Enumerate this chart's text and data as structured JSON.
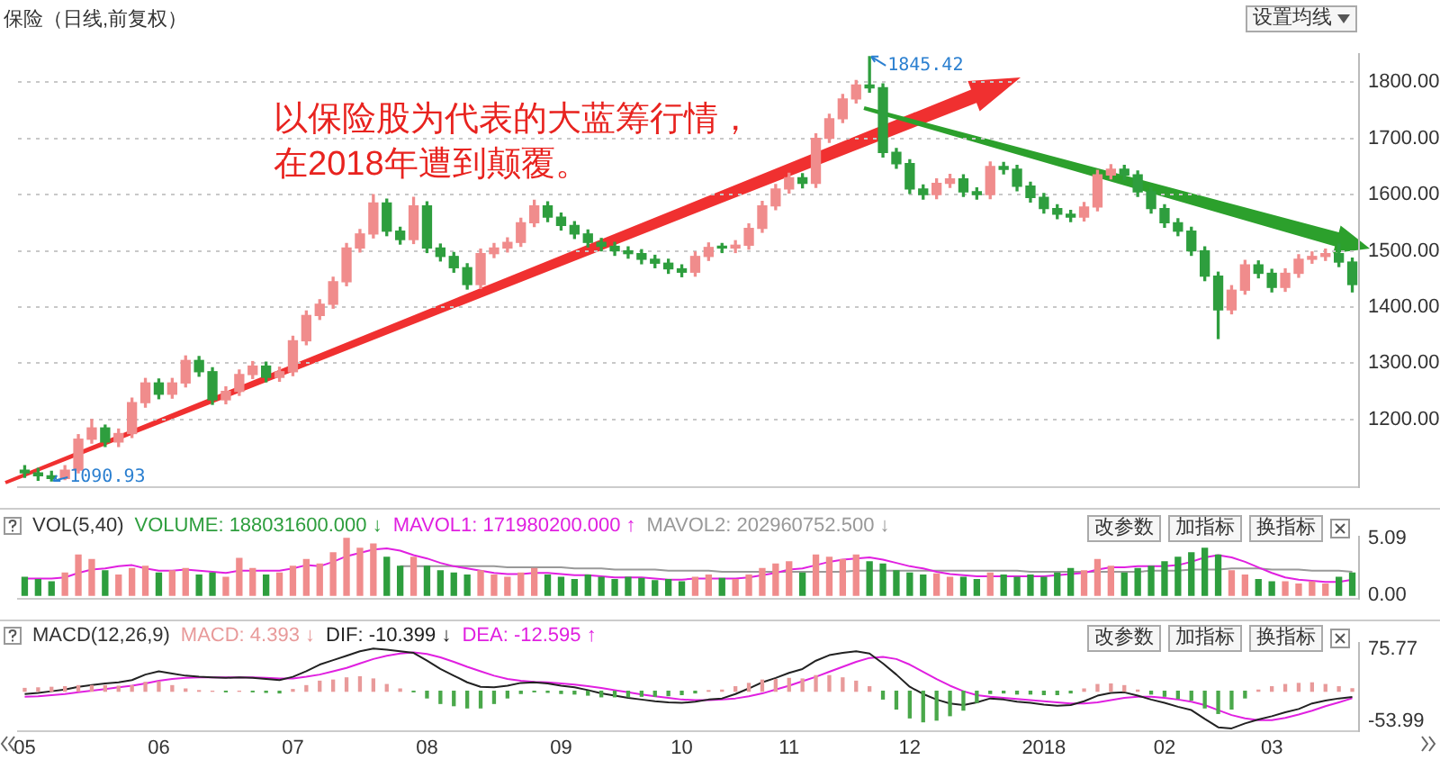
{
  "chart_data": [
    {
      "type": "candlestick",
      "title": "保险（日线,前复权）",
      "categories": [
        "05",
        null,
        null,
        null,
        null,
        null,
        null,
        null,
        null,
        null,
        "06",
        null,
        null,
        null,
        null,
        null,
        null,
        null,
        null,
        null,
        "07",
        null,
        null,
        null,
        null,
        null,
        null,
        null,
        null,
        null,
        "08",
        null,
        null,
        null,
        null,
        null,
        null,
        null,
        null,
        null,
        "09",
        null,
        null,
        null,
        null,
        null,
        null,
        null,
        null,
        "10",
        null,
        null,
        null,
        null,
        null,
        null,
        null,
        "11",
        null,
        null,
        null,
        null,
        null,
        null,
        null,
        null,
        "12",
        null,
        null,
        null,
        null,
        null,
        null,
        null,
        null,
        null,
        "2018",
        null,
        null,
        null,
        null,
        null,
        null,
        null,
        null,
        "02",
        null,
        null,
        null,
        null,
        null,
        null,
        null,
        "03",
        null,
        null,
        null,
        null,
        null,
        null
      ],
      "ohlc": [
        [
          1110,
          1118,
          1097,
          1105
        ],
        [
          1105,
          1113,
          1092,
          1100
        ],
        [
          1100,
          1108,
          1090.93,
          1095
        ],
        [
          1095,
          1118,
          1093,
          1110
        ],
        [
          1110,
          1173,
          1105,
          1165
        ],
        [
          1165,
          1200,
          1158,
          1185
        ],
        [
          1185,
          1190,
          1152,
          1160
        ],
        [
          1160,
          1183,
          1152,
          1175
        ],
        [
          1175,
          1238,
          1168,
          1230
        ],
        [
          1230,
          1273,
          1222,
          1265
        ],
        [
          1265,
          1272,
          1237,
          1245
        ],
        [
          1245,
          1273,
          1238,
          1265
        ],
        [
          1265,
          1313,
          1258,
          1305
        ],
        [
          1305,
          1312,
          1277,
          1285
        ],
        [
          1285,
          1292,
          1227,
          1235
        ],
        [
          1235,
          1258,
          1228,
          1250
        ],
        [
          1250,
          1288,
          1243,
          1280
        ],
        [
          1280,
          1303,
          1273,
          1295
        ],
        [
          1295,
          1302,
          1267,
          1275
        ],
        [
          1275,
          1293,
          1268,
          1285
        ],
        [
          1285,
          1348,
          1278,
          1340
        ],
        [
          1340,
          1393,
          1333,
          1385
        ],
        [
          1385,
          1413,
          1378,
          1405
        ],
        [
          1405,
          1453,
          1398,
          1445
        ],
        [
          1445,
          1513,
          1438,
          1505
        ],
        [
          1505,
          1538,
          1498,
          1530
        ],
        [
          1530,
          1600,
          1523,
          1585
        ],
        [
          1585,
          1592,
          1527,
          1535
        ],
        [
          1535,
          1542,
          1512,
          1520
        ],
        [
          1520,
          1595,
          1513,
          1580
        ],
        [
          1580,
          1587,
          1497,
          1505
        ],
        [
          1505,
          1512,
          1482,
          1490
        ],
        [
          1490,
          1497,
          1462,
          1470
        ],
        [
          1470,
          1477,
          1432,
          1440
        ],
        [
          1440,
          1503,
          1433,
          1495
        ],
        [
          1495,
          1513,
          1488,
          1505
        ],
        [
          1505,
          1523,
          1498,
          1515
        ],
        [
          1515,
          1558,
          1508,
          1550
        ],
        [
          1550,
          1590,
          1543,
          1580
        ],
        [
          1580,
          1587,
          1552,
          1560
        ],
        [
          1560,
          1567,
          1537,
          1545
        ],
        [
          1545,
          1552,
          1522,
          1530
        ],
        [
          1530,
          1537,
          1507,
          1515
        ],
        [
          1515,
          1522,
          1500,
          1508
        ],
        [
          1508,
          1515,
          1492,
          1500
        ],
        [
          1500,
          1507,
          1487,
          1495
        ],
        [
          1495,
          1502,
          1477,
          1485
        ],
        [
          1485,
          1492,
          1470,
          1478
        ],
        [
          1478,
          1485,
          1460,
          1468
        ],
        [
          1468,
          1475,
          1454,
          1462
        ],
        [
          1462,
          1498,
          1455,
          1490
        ],
        [
          1490,
          1514,
          1483,
          1506
        ],
        [
          1506,
          1513,
          1497,
          1505
        ],
        [
          1505,
          1518,
          1497,
          1510
        ],
        [
          1510,
          1548,
          1503,
          1540
        ],
        [
          1540,
          1588,
          1533,
          1580
        ],
        [
          1580,
          1618,
          1573,
          1610
        ],
        [
          1610,
          1638,
          1603,
          1630
        ],
        [
          1630,
          1637,
          1612,
          1620
        ],
        [
          1620,
          1708,
          1613,
          1700
        ],
        [
          1700,
          1743,
          1693,
          1735
        ],
        [
          1735,
          1778,
          1728,
          1770
        ],
        [
          1770,
          1803,
          1763,
          1795
        ],
        [
          1795,
          1845.42,
          1782,
          1790
        ],
        [
          1790,
          1797,
          1667,
          1675
        ],
        [
          1675,
          1682,
          1647,
          1655
        ],
        [
          1655,
          1662,
          1602,
          1610
        ],
        [
          1610,
          1617,
          1592,
          1600
        ],
        [
          1600,
          1628,
          1593,
          1620
        ],
        [
          1620,
          1636,
          1613,
          1628
        ],
        [
          1628,
          1635,
          1597,
          1605
        ],
        [
          1605,
          1612,
          1592,
          1600
        ],
        [
          1600,
          1658,
          1593,
          1650
        ],
        [
          1650,
          1657,
          1637,
          1645
        ],
        [
          1645,
          1652,
          1607,
          1615
        ],
        [
          1615,
          1622,
          1587,
          1595
        ],
        [
          1595,
          1602,
          1567,
          1575
        ],
        [
          1575,
          1582,
          1557,
          1565
        ],
        [
          1565,
          1572,
          1552,
          1560
        ],
        [
          1560,
          1586,
          1553,
          1578
        ],
        [
          1578,
          1643,
          1571,
          1635
        ],
        [
          1635,
          1653,
          1628,
          1645
        ],
        [
          1645,
          1652,
          1627,
          1635
        ],
        [
          1635,
          1642,
          1597,
          1605
        ],
        [
          1605,
          1612,
          1567,
          1575
        ],
        [
          1575,
          1582,
          1542,
          1550
        ],
        [
          1550,
          1557,
          1527,
          1535
        ],
        [
          1535,
          1542,
          1492,
          1500
        ],
        [
          1500,
          1507,
          1447,
          1455
        ],
        [
          1455,
          1462,
          1344,
          1395
        ],
        [
          1395,
          1438,
          1388,
          1430
        ],
        [
          1430,
          1483,
          1423,
          1475
        ],
        [
          1475,
          1482,
          1452,
          1460
        ],
        [
          1460,
          1467,
          1427,
          1435
        ],
        [
          1435,
          1468,
          1428,
          1460
        ],
        [
          1460,
          1493,
          1453,
          1485
        ],
        [
          1485,
          1498,
          1478,
          1490
        ],
        [
          1490,
          1503,
          1483,
          1495
        ],
        [
          1495,
          1512,
          1472,
          1480
        ],
        [
          1480,
          1487,
          1427,
          1440
        ]
      ],
      "colors": [
        "#2e9e3e",
        "#2e9e3e",
        "#2e9e3e",
        "#f08c8c",
        "#f08c8c",
        "#f08c8c",
        "#2e9e3e",
        "#f08c8c",
        "#f08c8c",
        "#f08c8c",
        "#2e9e3e",
        "#f08c8c",
        "#f08c8c",
        "#2e9e3e",
        "#2e9e3e",
        "#f08c8c",
        "#f08c8c",
        "#f08c8c",
        "#2e9e3e",
        "#f08c8c",
        "#f08c8c",
        "#f08c8c",
        "#f08c8c",
        "#f08c8c",
        "#f08c8c",
        "#f08c8c",
        "#f08c8c",
        "#2e9e3e",
        "#2e9e3e",
        "#f08c8c",
        "#2e9e3e",
        "#2e9e3e",
        "#2e9e3e",
        "#2e9e3e",
        "#f08c8c",
        "#f08c8c",
        "#f08c8c",
        "#f08c8c",
        "#f08c8c",
        "#2e9e3e",
        "#2e9e3e",
        "#2e9e3e",
        "#2e9e3e",
        "#2e9e3e",
        "#2e9e3e",
        "#2e9e3e",
        "#2e9e3e",
        "#2e9e3e",
        "#2e9e3e",
        "#2e9e3e",
        "#f08c8c",
        "#f08c8c",
        "#2e9e3e",
        "#f08c8c",
        "#f08c8c",
        "#f08c8c",
        "#f08c8c",
        "#f08c8c",
        "#2e9e3e",
        "#f08c8c",
        "#f08c8c",
        "#f08c8c",
        "#f08c8c",
        "#2e9e3e",
        "#2e9e3e",
        "#2e9e3e",
        "#2e9e3e",
        "#2e9e3e",
        "#f08c8c",
        "#f08c8c",
        "#2e9e3e",
        "#2e9e3e",
        "#f08c8c",
        "#2e9e3e",
        "#2e9e3e",
        "#2e9e3e",
        "#2e9e3e",
        "#2e9e3e",
        "#2e9e3e",
        "#f08c8c",
        "#f08c8c",
        "#f08c8c",
        "#2e9e3e",
        "#2e9e3e",
        "#2e9e3e",
        "#2e9e3e",
        "#2e9e3e",
        "#2e9e3e",
        "#2e9e3e",
        "#2e9e3e",
        "#f08c8c",
        "#f08c8c",
        "#2e9e3e",
        "#2e9e3e",
        "#f08c8c",
        "#f08c8c",
        "#f08c8c",
        "#f08c8c",
        "#2e9e3e",
        "#2e9e3e"
      ],
      "ylim": [
        1080,
        1850
      ],
      "yticks": [
        {
          "value": 1200,
          "label": "1200.00"
        },
        {
          "value": 1300,
          "label": "1300.00"
        },
        {
          "value": 1400,
          "label": "1400.00"
        },
        {
          "value": 1500,
          "label": "1500.00"
        },
        {
          "value": 1600,
          "label": "1600.00"
        },
        {
          "value": 1700,
          "label": "1700.00"
        },
        {
          "value": 1800,
          "label": "1800.00"
        }
      ],
      "grid": "y",
      "tick_labels": "y",
      "annotations": [
        "以保险股为代表的大蓝筹行情，在2018年遭到颠覆。",
        "1845.42",
        "1090.93",
        "设置均线"
      ]
    },
    {
      "type": "bar",
      "title": "VOL(5,40)",
      "categories": [
        "05",
        null,
        null,
        null,
        null,
        null,
        null,
        null,
        null,
        null,
        "06",
        null,
        null,
        null,
        null,
        null,
        null,
        null,
        null,
        null,
        "07",
        null,
        null,
        null,
        null,
        null,
        null,
        null,
        null,
        null,
        "08",
        null,
        null,
        null,
        null,
        null,
        null,
        null,
        null,
        null,
        "09",
        null,
        null,
        null,
        null,
        null,
        null,
        null,
        null,
        "10",
        null,
        null,
        null,
        null,
        null,
        null,
        null,
        "11",
        null,
        null,
        null,
        null,
        null,
        null,
        null,
        null,
        "12",
        null,
        null,
        null,
        null,
        null,
        null,
        null,
        null,
        null,
        "2018",
        null,
        null,
        null,
        null,
        null,
        null,
        null,
        null,
        "02",
        null,
        null,
        null,
        null,
        null,
        null,
        null,
        "03",
        null,
        null,
        null,
        null,
        null,
        null
      ],
      "series": [
        {
          "name": "VOLUME: 188031600.000 ↓",
          "type": "bar",
          "colors": [
            "#2e9e3e",
            "#2e9e3e",
            "#2e9e3e",
            "#f08c8c",
            "#f08c8c",
            "#f08c8c",
            "#2e9e3e",
            "#f08c8c",
            "#f08c8c",
            "#f08c8c",
            "#2e9e3e",
            "#f08c8c",
            "#f08c8c",
            "#2e9e3e",
            "#2e9e3e",
            "#f08c8c",
            "#f08c8c",
            "#f08c8c",
            "#2e9e3e",
            "#f08c8c",
            "#f08c8c",
            "#f08c8c",
            "#f08c8c",
            "#f08c8c",
            "#f08c8c",
            "#f08c8c",
            "#f08c8c",
            "#2e9e3e",
            "#2e9e3e",
            "#f08c8c",
            "#2e9e3e",
            "#2e9e3e",
            "#2e9e3e",
            "#2e9e3e",
            "#f08c8c",
            "#f08c8c",
            "#f08c8c",
            "#f08c8c",
            "#f08c8c",
            "#2e9e3e",
            "#2e9e3e",
            "#2e9e3e",
            "#2e9e3e",
            "#2e9e3e",
            "#2e9e3e",
            "#2e9e3e",
            "#2e9e3e",
            "#2e9e3e",
            "#2e9e3e",
            "#2e9e3e",
            "#f08c8c",
            "#f08c8c",
            "#2e9e3e",
            "#f08c8c",
            "#f08c8c",
            "#f08c8c",
            "#f08c8c",
            "#f08c8c",
            "#2e9e3e",
            "#f08c8c",
            "#f08c8c",
            "#f08c8c",
            "#f08c8c",
            "#2e9e3e",
            "#2e9e3e",
            "#2e9e3e",
            "#2e9e3e",
            "#2e9e3e",
            "#f08c8c",
            "#f08c8c",
            "#2e9e3e",
            "#2e9e3e",
            "#f08c8c",
            "#2e9e3e",
            "#2e9e3e",
            "#2e9e3e",
            "#2e9e3e",
            "#2e9e3e",
            "#2e9e3e",
            "#f08c8c",
            "#f08c8c",
            "#f08c8c",
            "#2e9e3e",
            "#2e9e3e",
            "#2e9e3e",
            "#2e9e3e",
            "#2e9e3e",
            "#2e9e3e",
            "#2e9e3e",
            "#2e9e3e",
            "#f08c8c",
            "#f08c8c",
            "#2e9e3e",
            "#2e9e3e",
            "#f08c8c",
            "#f08c8c",
            "#f08c8c",
            "#f08c8c",
            "#2e9e3e",
            "#2e9e3e"
          ],
          "values": [
            1.6,
            1.4,
            1.2,
            2.0,
            3.6,
            3.2,
            2.2,
            1.8,
            2.4,
            2.6,
            2.0,
            2.2,
            2.4,
            1.8,
            2.0,
            1.6,
            3.3,
            2.4,
            1.8,
            2.0,
            2.6,
            3.2,
            2.8,
            3.8,
            5.1,
            4.2,
            4.6,
            3.4,
            2.6,
            3.4,
            2.6,
            2.2,
            2.0,
            1.8,
            2.2,
            1.8,
            1.6,
            2.0,
            2.4,
            1.8,
            1.6,
            1.4,
            1.8,
            1.6,
            1.4,
            1.6,
            1.5,
            1.3,
            1.4,
            1.2,
            1.6,
            1.8,
            1.5,
            1.4,
            1.8,
            2.4,
            2.8,
            3.0,
            2.0,
            3.6,
            3.4,
            3.2,
            3.6,
            3.0,
            2.8,
            2.2,
            2.0,
            1.8,
            1.9,
            1.6,
            1.6,
            1.4,
            2.0,
            1.8,
            1.6,
            1.8,
            1.6,
            2.0,
            2.4,
            2.2,
            3.2,
            2.6,
            2.0,
            2.4,
            2.6,
            3.0,
            3.4,
            3.8,
            4.2,
            3.6,
            2.2,
            1.8,
            1.4,
            1.2,
            1.2,
            1.0,
            1.2,
            1.0,
            1.6,
            2.0
          ]
        },
        {
          "name": "MAVOL1: 171980200.000 ↑",
          "type": "line",
          "color": "#e020e0",
          "values": [
            1.5,
            1.5,
            1.5,
            1.6,
            2.0,
            2.3,
            2.4,
            2.6,
            2.7,
            2.4,
            2.2,
            2.2,
            2.3,
            2.2,
            2.1,
            2.0,
            2.2,
            2.2,
            2.2,
            2.2,
            2.4,
            2.7,
            2.6,
            3.0,
            3.5,
            3.8,
            4.1,
            4.2,
            4.0,
            3.6,
            3.3,
            2.9,
            2.6,
            2.4,
            2.2,
            2.0,
            1.9,
            1.9,
            2.0,
            2.0,
            1.9,
            1.8,
            1.8,
            1.7,
            1.6,
            1.6,
            1.6,
            1.5,
            1.4,
            1.4,
            1.5,
            1.5,
            1.5,
            1.5,
            1.6,
            1.8,
            2.0,
            2.3,
            2.4,
            2.7,
            3.0,
            3.2,
            3.3,
            3.4,
            3.2,
            2.9,
            2.6,
            2.4,
            2.1,
            1.9,
            1.8,
            1.7,
            1.7,
            1.7,
            1.7,
            1.7,
            1.7,
            1.8,
            1.9,
            2.0,
            2.3,
            2.5,
            2.5,
            2.6,
            2.6,
            2.6,
            2.7,
            3.0,
            3.4,
            3.6,
            3.4,
            3.0,
            2.5,
            2.0,
            1.6,
            1.4,
            1.3,
            1.2,
            1.2,
            1.4
          ]
        },
        {
          "name": "MAVOL2: 202960752.500 ↓",
          "type": "line",
          "color": "#999999",
          "values": [
            null,
            null,
            null,
            null,
            null,
            null,
            null,
            null,
            null,
            null,
            null,
            null,
            null,
            null,
            null,
            null,
            null,
            null,
            null,
            null,
            null,
            null,
            null,
            null,
            null,
            null,
            null,
            null,
            2.6,
            2.6,
            2.6,
            2.6,
            2.6,
            2.6,
            2.6,
            2.6,
            2.5,
            2.5,
            2.5,
            2.5,
            2.5,
            2.4,
            2.4,
            2.4,
            2.3,
            2.3,
            2.3,
            2.3,
            2.2,
            2.2,
            2.2,
            2.2,
            2.1,
            2.1,
            2.1,
            2.1,
            2.1,
            2.1,
            2.1,
            2.1,
            2.1,
            2.1,
            2.2,
            2.2,
            2.2,
            2.2,
            2.2,
            2.2,
            2.2,
            2.2,
            2.2,
            2.2,
            2.2,
            2.2,
            2.2,
            2.1,
            2.1,
            2.1,
            2.1,
            2.1,
            2.1,
            2.1,
            2.1,
            2.1,
            2.2,
            2.2,
            2.2,
            2.3,
            2.3,
            2.3,
            2.4,
            2.4,
            2.4,
            2.3,
            2.3,
            2.3,
            2.2,
            2.2,
            2.2,
            2.1
          ]
        }
      ],
      "ylim": [
        -0.3,
        5.25
      ],
      "yticks": [
        {
          "value": 0,
          "label": "0.00"
        },
        5.09
      ],
      "tick_labels": "y",
      "legend": "top left",
      "annotations": [
        "改参数",
        "加指标",
        "换指标"
      ]
    },
    {
      "type": "line",
      "title": "MACD(12,26,9)",
      "categories": [
        "05",
        null,
        null,
        null,
        null,
        null,
        null,
        null,
        null,
        null,
        "06",
        null,
        null,
        null,
        null,
        null,
        null,
        null,
        null,
        null,
        "07",
        null,
        null,
        null,
        null,
        null,
        null,
        null,
        null,
        null,
        "08",
        null,
        null,
        null,
        null,
        null,
        null,
        null,
        null,
        null,
        "09",
        null,
        null,
        null,
        null,
        null,
        null,
        null,
        null,
        "10",
        null,
        null,
        null,
        null,
        null,
        null,
        null,
        "11",
        null,
        null,
        null,
        null,
        null,
        null,
        null,
        null,
        "12",
        null,
        null,
        null,
        null,
        null,
        null,
        null,
        null,
        null,
        "2018",
        null,
        null,
        null,
        null,
        null,
        null,
        null,
        null,
        "02",
        null,
        null,
        null,
        null,
        null,
        null,
        null,
        "03",
        null,
        null,
        null,
        null,
        null,
        null
      ],
      "series": [
        {
          "name": "MACD: 4.393 ↓",
          "type": "bar",
          "colors": [
            "#e89a9a",
            "#e89a9a",
            "#e89a9a",
            "#e89a9a",
            "#e89a9a",
            "#e89a9a",
            "#e89a9a",
            "#e89a9a",
            "#e89a9a",
            "#e89a9a",
            "#e89a9a",
            "#e89a9a",
            "#e89a9a",
            "#e89a9a",
            "#e89a9a",
            "#4aa84a",
            "#e89a9a",
            "#4aa84a",
            "#4aa84a",
            "#4aa84a",
            "#e89a9a",
            "#e89a9a",
            "#e89a9a",
            "#e89a9a",
            "#e89a9a",
            "#e89a9a",
            "#e89a9a",
            "#e89a9a",
            "#e89a9a",
            "#4aa84a",
            "#4aa84a",
            "#4aa84a",
            "#4aa84a",
            "#4aa84a",
            "#4aa84a",
            "#4aa84a",
            "#4aa84a",
            "#4aa84a",
            "#4aa84a",
            "#4aa84a",
            "#4aa84a",
            "#4aa84a",
            "#4aa84a",
            "#4aa84a",
            "#4aa84a",
            "#4aa84a",
            "#4aa84a",
            "#4aa84a",
            "#4aa84a",
            "#4aa84a",
            "#4aa84a",
            "#e89a9a",
            "#e89a9a",
            "#e89a9a",
            "#e89a9a",
            "#e89a9a",
            "#e89a9a",
            "#e89a9a",
            "#e89a9a",
            "#e89a9a",
            "#e89a9a",
            "#e89a9a",
            "#e89a9a",
            "#e89a9a",
            "#4aa84a",
            "#4aa84a",
            "#4aa84a",
            "#4aa84a",
            "#4aa84a",
            "#4aa84a",
            "#4aa84a",
            "#4aa84a",
            "#4aa84a",
            "#4aa84a",
            "#4aa84a",
            "#4aa84a",
            "#4aa84a",
            "#4aa84a",
            "#4aa84a",
            "#e89a9a",
            "#e89a9a",
            "#e89a9a",
            "#e89a9a",
            "#e89a9a",
            "#4aa84a",
            "#4aa84a",
            "#4aa84a",
            "#4aa84a",
            "#4aa84a",
            "#4aa84a",
            "#4aa84a",
            "#4aa84a",
            "#e89a9a",
            "#e89a9a",
            "#e89a9a",
            "#e89a9a",
            "#e89a9a",
            "#e89a9a",
            "#e89a9a",
            "#e89a9a"
          ],
          "values": [
            5,
            6,
            7,
            8,
            10,
            10,
            10,
            9,
            10,
            16,
            17,
            10,
            4,
            1,
            0,
            -1,
            0,
            -1,
            -2,
            -3,
            3,
            10,
            18,
            20,
            24,
            26,
            22,
            12,
            4,
            -1,
            -12,
            -22,
            -26,
            -30,
            -30,
            -22,
            -12,
            -4,
            -1,
            -2,
            -4,
            -5,
            -7,
            -10,
            -10,
            -10,
            -9,
            -9,
            -8,
            -6,
            -3,
            1,
            2,
            8,
            14,
            20,
            21,
            23,
            22,
            28,
            28,
            24,
            18,
            8,
            -14,
            -32,
            -48,
            -55,
            -52,
            -44,
            -34,
            -20,
            -4,
            -3,
            -5,
            -5,
            -6,
            -6,
            -3,
            4,
            12,
            13,
            10,
            2,
            -5,
            -9,
            -13,
            -16,
            -30,
            -40,
            -32,
            -12,
            2,
            8,
            12,
            14,
            15,
            12,
            8,
            4.4
          ]
        },
        {
          "name": "DIF: -10.399 ↓",
          "type": "line",
          "color": "#222222",
          "values": [
            -5,
            -3,
            0,
            3,
            8,
            11,
            14,
            16,
            20,
            30,
            36,
            32,
            28,
            26,
            25,
            24,
            25,
            24,
            22,
            20,
            26,
            36,
            48,
            56,
            64,
            72,
            77,
            75,
            72,
            69,
            55,
            40,
            28,
            16,
            8,
            7,
            10,
            15,
            16,
            14,
            10,
            7,
            2,
            -4,
            -8,
            -12,
            -15,
            -18,
            -20,
            -21,
            -19,
            -15,
            -13,
            -5,
            5,
            16,
            24,
            33,
            40,
            55,
            65,
            69,
            72,
            68,
            50,
            30,
            8,
            -5,
            -15,
            -22,
            -25,
            -20,
            -13,
            -15,
            -19,
            -21,
            -24,
            -26,
            -25,
            -18,
            -8,
            -3,
            -2,
            -8,
            -15,
            -21,
            -28,
            -34,
            -50,
            -65,
            -67,
            -58,
            -51,
            -45,
            -38,
            -32,
            -22,
            -17,
            -13,
            -10.4
          ]
        },
        {
          "name": "DEA: -12.595 ↑",
          "type": "line",
          "color": "#e020e0",
          "values": [
            -10,
            -9,
            -7,
            -5,
            -2,
            1,
            4,
            7,
            10,
            14,
            19,
            22,
            24,
            25,
            25,
            25,
            25,
            25,
            24,
            23,
            23,
            26,
            30,
            36,
            42,
            50,
            58,
            64,
            68,
            70,
            67,
            61,
            53,
            44,
            36,
            28,
            22,
            19,
            17,
            16,
            14,
            12,
            9,
            6,
            2,
            -2,
            -6,
            -9,
            -12,
            -15,
            -16,
            -16,
            -15,
            -13,
            -9,
            -4,
            3,
            10,
            18,
            26,
            35,
            44,
            53,
            60,
            62,
            58,
            48,
            35,
            22,
            10,
            0,
            -7,
            -10,
            -12,
            -14,
            -16,
            -18,
            -20,
            -22,
            -22,
            -20,
            -16,
            -12,
            -10,
            -10,
            -12,
            -15,
            -19,
            -25,
            -34,
            -43,
            -49,
            -52,
            -52,
            -48,
            -42,
            -35,
            -27,
            -20,
            -12.6
          ]
        }
      ],
      "ylim": [
        -72,
        87
      ],
      "yticks": [
        -53.99,
        75.77
      ],
      "legend": "top left",
      "annotations": [
        "改参数",
        "加指标",
        "换指标"
      ]
    }
  ]
}
